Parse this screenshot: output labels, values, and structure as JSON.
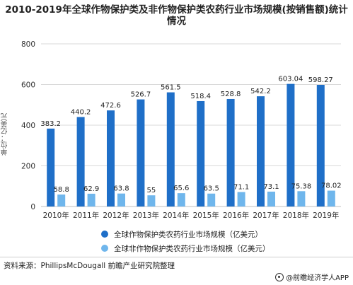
{
  "title": "2010-2019年全球作物保护类及非作物保护类农药行业市场规模(按销售额)统计情况",
  "source": "资料来源：PhillipsMcDougall 前瞻产业研究院整理",
  "brand": "@前瞻经济学人APP",
  "colors": {
    "series1": "#1f6fc8",
    "series2": "#6fb6ec",
    "grid": "#d9d9d9"
  },
  "chart_data": {
    "type": "bar",
    "ylabel": "单位：亿美元",
    "ylim": [
      0,
      800
    ],
    "yticks": [
      0,
      200,
      400,
      600,
      800
    ],
    "categories": [
      "2010年",
      "2011年",
      "2012年",
      "2013年",
      "2014年",
      "2015年",
      "2016年",
      "2017年",
      "2018年",
      "2019年"
    ],
    "series": [
      {
        "name": "全球作物保护类农药行业市场规模（亿美元）",
        "values": [
          383.2,
          440.2,
          472.6,
          526.7,
          561.5,
          518.4,
          528.8,
          542.2,
          603.04,
          598.27
        ]
      },
      {
        "name": "全球非作物保护类农药行业市场规模（亿美元）",
        "values": [
          58.8,
          62.9,
          63.8,
          55,
          65.6,
          63.5,
          71.1,
          73.1,
          75.38,
          78.02
        ]
      }
    ],
    "grid": true,
    "legend_position": "bottom"
  }
}
